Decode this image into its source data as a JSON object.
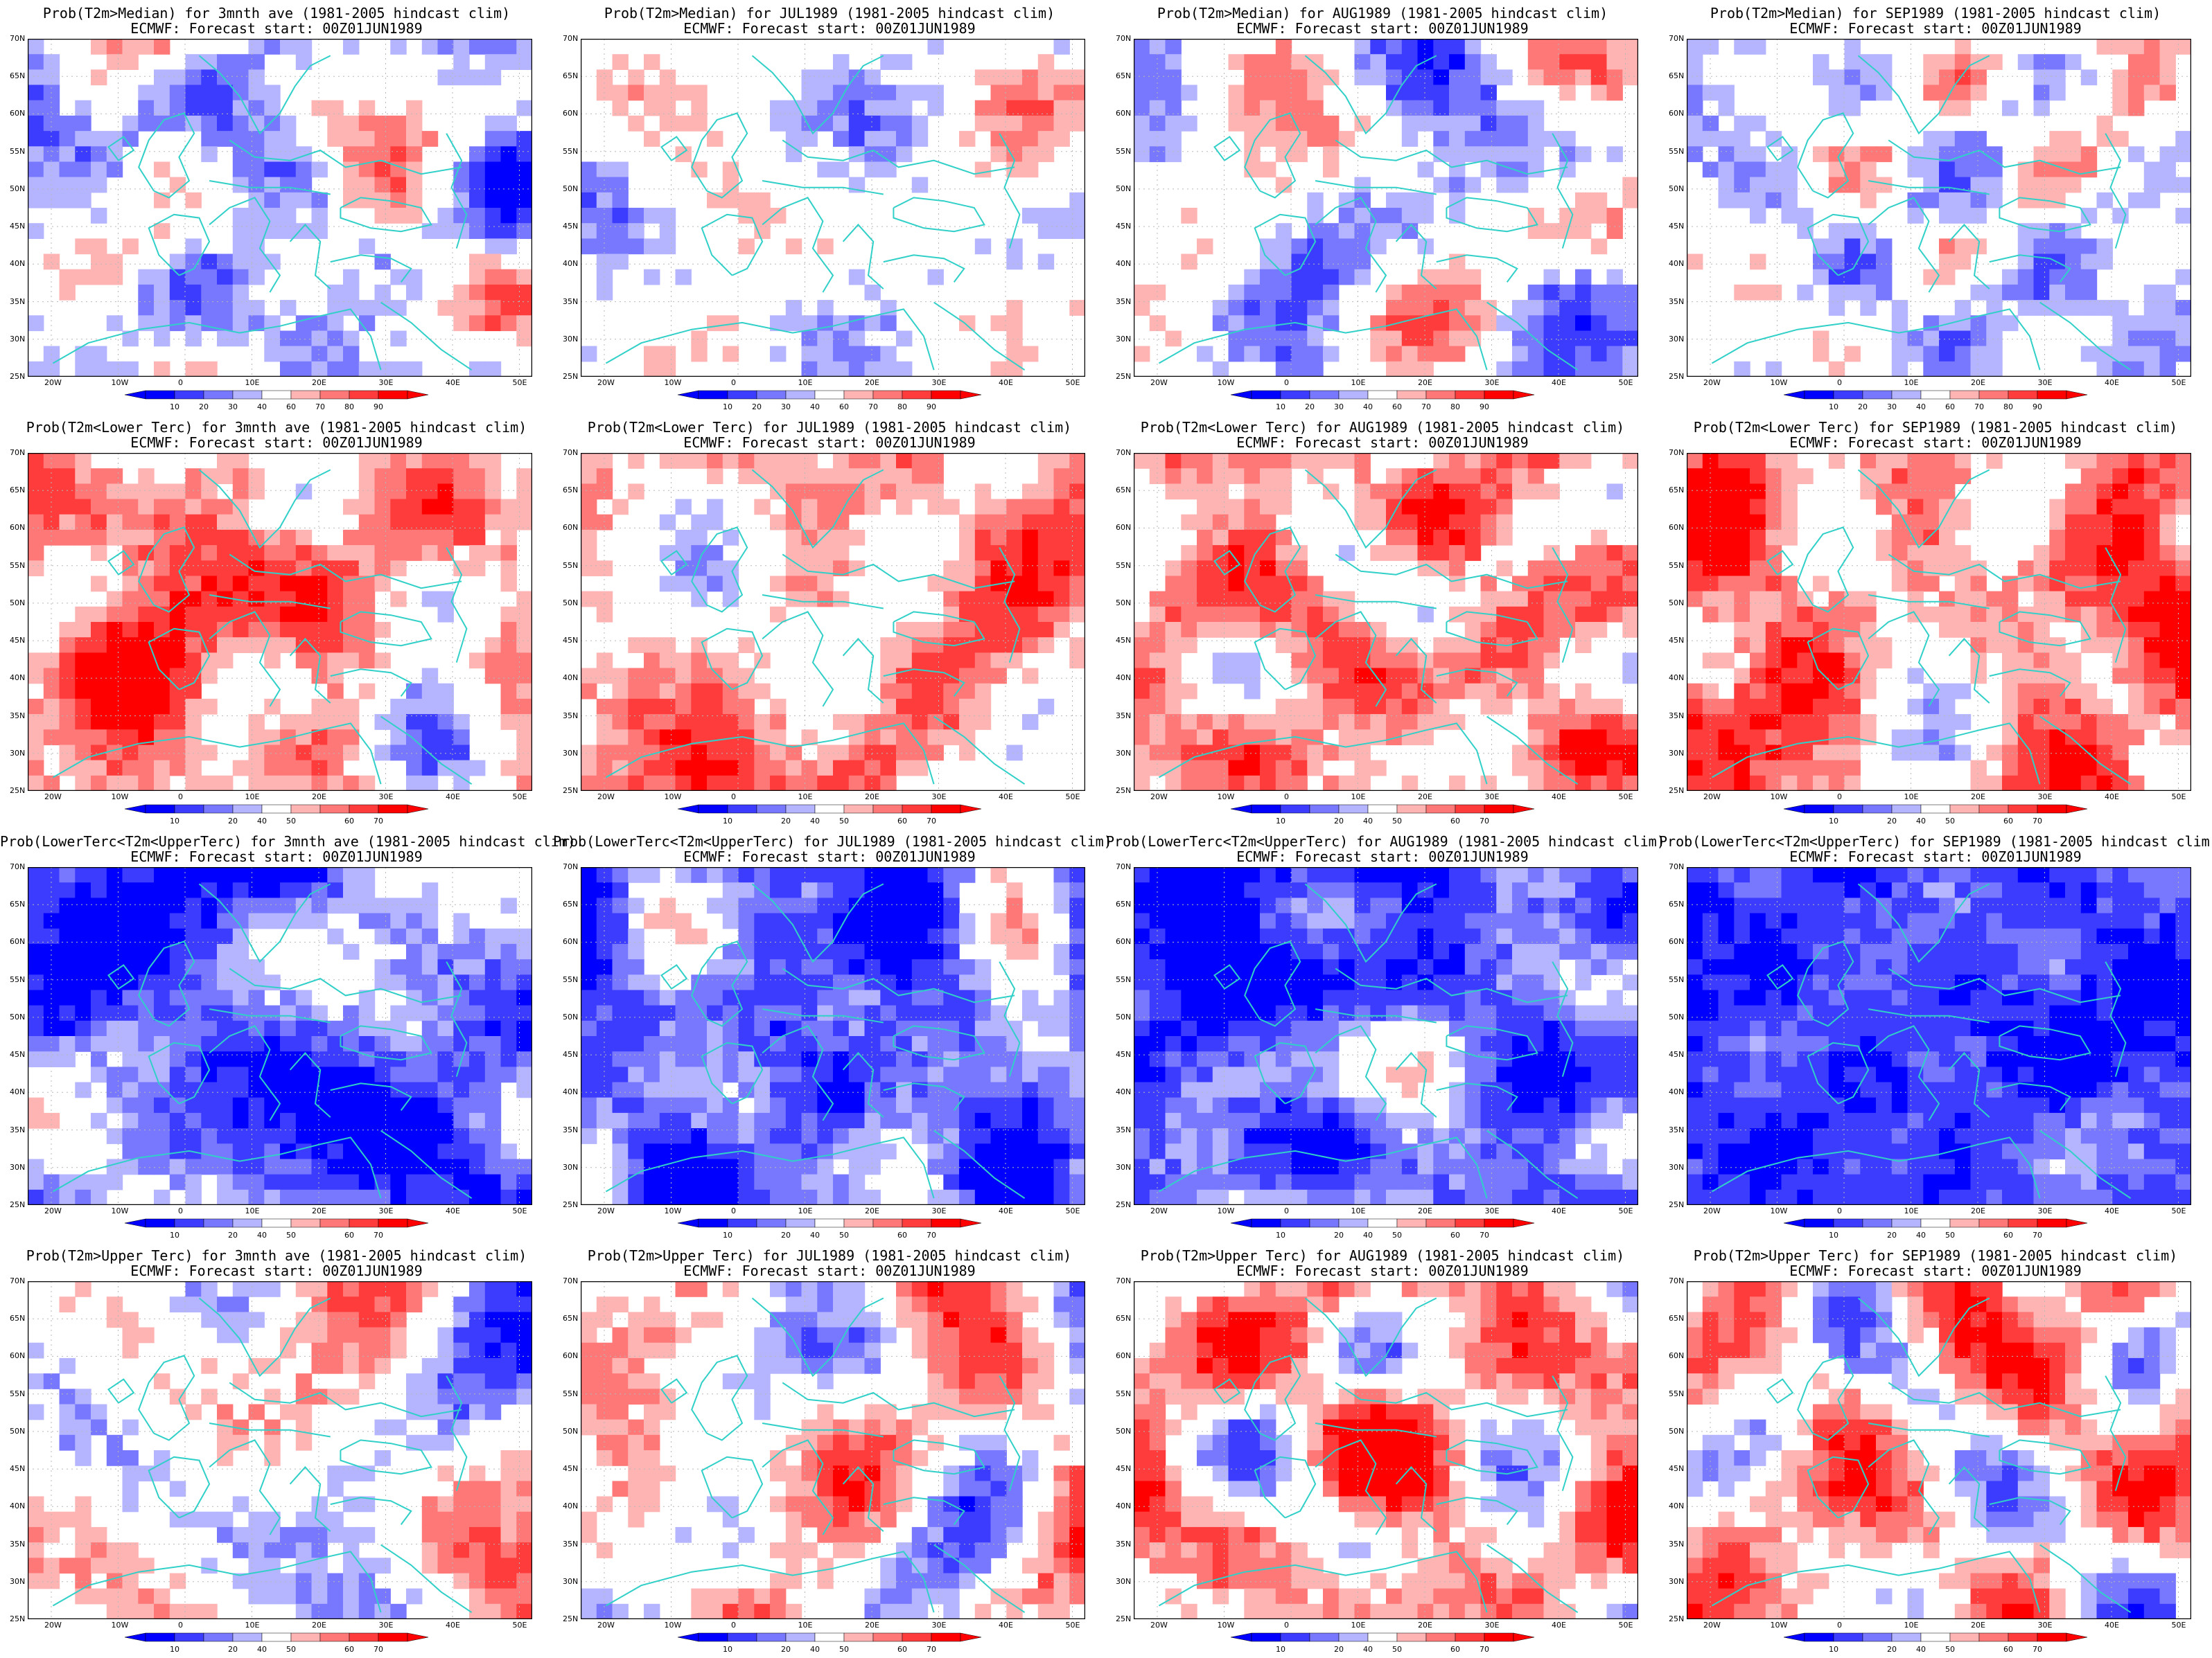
{
  "colors": {
    "blue_levels": [
      "#0000ff",
      "#3c3cff",
      "#7878ff",
      "#b4b4ff"
    ],
    "red_levels": [
      "#ffb4b4",
      "#ff7878",
      "#ff3c3c",
      "#ff0000"
    ],
    "coast": "#30d0c8",
    "grid": "#b8b8b8"
  },
  "axes": {
    "lat_labels": [
      "70N",
      "65N",
      "60N",
      "55N",
      "50N",
      "45N",
      "40N",
      "35N",
      "30N",
      "25N"
    ],
    "lon_labels": [
      "20W",
      "10W",
      "0",
      "10E",
      "20E",
      "30E",
      "40E",
      "50E"
    ]
  },
  "colorbars": {
    "median": [
      "10",
      "20",
      "30",
      "40",
      "60",
      "70",
      "80",
      "90"
    ],
    "tercile": [
      "10",
      "20",
      "40",
      "50",
      "60",
      "70"
    ]
  },
  "subtitle": "ECMWF: Forecast start: 00Z01JUN1989",
  "panels": [
    {
      "title": "Prob(T2m>Median) for 3mnth ave (1981-2005 hindcast clim)",
      "bar": "median",
      "seed": 11,
      "bias": -0.15
    },
    {
      "title": "Prob(T2m>Median) for JUL1989 (1981-2005 hindcast clim)",
      "bar": "median",
      "seed": 23,
      "bias": -0.05
    },
    {
      "title": "Prob(T2m>Median) for AUG1989 (1981-2005 hindcast clim)",
      "bar": "median",
      "seed": 37,
      "bias": -0.1
    },
    {
      "title": "Prob(T2m>Median) for SEP1989 (1981-2005 hindcast clim)",
      "bar": "median",
      "seed": 41,
      "bias": -0.1
    },
    {
      "title": "Prob(T2m<Lower Terc) for 3mnth ave (1981-2005 hindcast clim)",
      "bar": "tercile",
      "seed": 53,
      "bias": 0.35
    },
    {
      "title": "Prob(T2m<Lower Terc) for JUL1989 (1981-2005 hindcast clim)",
      "bar": "tercile",
      "seed": 61,
      "bias": 0.3
    },
    {
      "title": "Prob(T2m<Lower Terc) for AUG1989 (1981-2005 hindcast clim)",
      "bar": "tercile",
      "seed": 71,
      "bias": 0.35
    },
    {
      "title": "Prob(T2m<Lower Terc) for SEP1989 (1981-2005 hindcast clim)",
      "bar": "tercile",
      "seed": 83,
      "bias": 0.4
    },
    {
      "title": "Prob(LowerTerc<T2m<UpperTerc) for 3mnth ave (1981-2005 hindcast clim)",
      "bar": "tercile",
      "seed": 97,
      "bias": -0.55
    },
    {
      "title": "Prob(LowerTerc<T2m<UpperTerc) for JUL1989 (1981-2005 hindcast clim)",
      "bar": "tercile",
      "seed": 101,
      "bias": -0.55
    },
    {
      "title": "Prob(LowerTerc<T2m<UpperTerc) for AUG1989 (1981-2005 hindcast clim)",
      "bar": "tercile",
      "seed": 113,
      "bias": -0.6
    },
    {
      "title": "Prob(LowerTerc<T2m<UpperTerc) for SEP1989 (1981-2005 hindcast clim)",
      "bar": "tercile",
      "seed": 127,
      "bias": -0.75
    },
    {
      "title": "Prob(T2m>Upper Terc) for 3mnth ave (1981-2005 hindcast clim)",
      "bar": "tercile",
      "seed": 131,
      "bias": 0.0
    },
    {
      "title": "Prob(T2m>Upper Terc) for JUL1989 (1981-2005 hindcast clim)",
      "bar": "tercile",
      "seed": 137,
      "bias": 0.1
    },
    {
      "title": "Prob(T2m>Upper Terc) for AUG1989 (1981-2005 hindcast clim)",
      "bar": "tercile",
      "seed": 149,
      "bias": 0.3
    },
    {
      "title": "Prob(T2m>Upper Terc) for SEP1989 (1981-2005 hindcast clim)",
      "bar": "tercile",
      "seed": 151,
      "bias": 0.2
    }
  ]
}
